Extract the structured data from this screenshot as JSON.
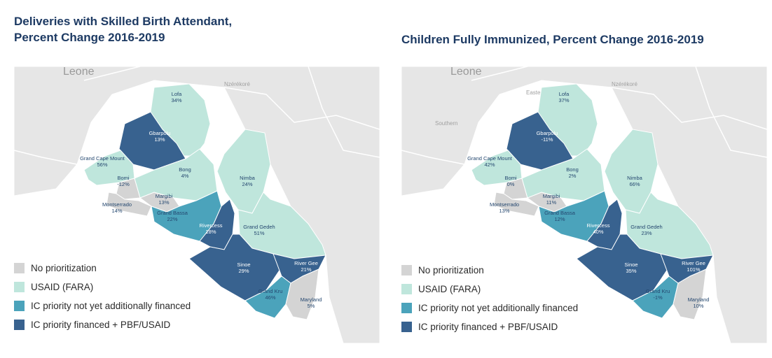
{
  "colors": {
    "none": "#d4d4d4",
    "usaid": "#bfe6dc",
    "ic_not_financed": "#4ba3bb",
    "ic_financed": "#38628f",
    "ocean": "#ffffff",
    "land": "#e6e6e6"
  },
  "legend": [
    {
      "key": "none",
      "label": "No prioritization"
    },
    {
      "key": "usaid",
      "label": "USAID (FARA)"
    },
    {
      "key": "ic_not_financed",
      "label": "IC priority not yet additionally financed"
    },
    {
      "key": "ic_financed",
      "label": "IC priority financed + PBF/USAID"
    }
  ],
  "maps": [
    {
      "title_line1": "Deliveries with Skilled Birth Attendant,",
      "title_line2": "Percent Change 2016-2019",
      "place_labels": [
        "Leone",
        "Nzérékoré"
      ],
      "counties": [
        {
          "name": "Lofa",
          "value": "34%",
          "category": "usaid"
        },
        {
          "name": "Gbarpolu",
          "value": "13%",
          "category": "ic_financed"
        },
        {
          "name": "Grand Cape Mount",
          "value": "56%",
          "category": "usaid"
        },
        {
          "name": "Bomi",
          "value": "-12%",
          "category": "none"
        },
        {
          "name": "Bong",
          "value": "4%",
          "category": "usaid"
        },
        {
          "name": "Nimba",
          "value": "24%",
          "category": "usaid"
        },
        {
          "name": "Margibi",
          "value": "13%",
          "category": "none"
        },
        {
          "name": "Montserrado",
          "value": "14%",
          "category": "none"
        },
        {
          "name": "Grand Bassa",
          "value": "22%",
          "category": "ic_not_financed"
        },
        {
          "name": "Rivercess",
          "value": "18%",
          "category": "ic_financed"
        },
        {
          "name": "Grand Gedeh",
          "value": "51%",
          "category": "usaid"
        },
        {
          "name": "Sinoe",
          "value": "29%",
          "category": "ic_financed"
        },
        {
          "name": "River Gee",
          "value": "21%",
          "category": "ic_financed"
        },
        {
          "name": "Grand Kru",
          "value": "46%",
          "category": "ic_not_financed"
        },
        {
          "name": "Maryland",
          "value": "5%",
          "category": "none"
        }
      ]
    },
    {
      "title_line1": "Children Fully Immunized, Percent Change 2016-2019",
      "title_line2": "",
      "place_labels": [
        "Leone",
        "Nzérékoré",
        "Eastern",
        "Southern"
      ],
      "counties": [
        {
          "name": "Lofa",
          "value": "37%",
          "category": "usaid"
        },
        {
          "name": "Gbarpolu",
          "value": "-11%",
          "category": "ic_financed"
        },
        {
          "name": "Grand Cape Mount",
          "value": "42%",
          "category": "usaid"
        },
        {
          "name": "Bomi",
          "value": "0%",
          "category": "none"
        },
        {
          "name": "Bong",
          "value": "2%",
          "category": "usaid"
        },
        {
          "name": "Nimba",
          "value": "66%",
          "category": "usaid"
        },
        {
          "name": "Margibi",
          "value": "11%",
          "category": "none"
        },
        {
          "name": "Montserrado",
          "value": "13%",
          "category": "none"
        },
        {
          "name": "Grand Bassa",
          "value": "12%",
          "category": "ic_not_financed"
        },
        {
          "name": "Rivercess",
          "value": "40%",
          "category": "ic_financed"
        },
        {
          "name": "Grand Gedeh",
          "value": "23%",
          "category": "usaid"
        },
        {
          "name": "Sinoe",
          "value": "35%",
          "category": "ic_financed"
        },
        {
          "name": "River Gee",
          "value": "101%",
          "category": "ic_financed"
        },
        {
          "name": "Grand Kru",
          "value": "-1%",
          "category": "ic_not_financed"
        },
        {
          "name": "Maryland",
          "value": "10%",
          "category": "none"
        }
      ]
    }
  ]
}
